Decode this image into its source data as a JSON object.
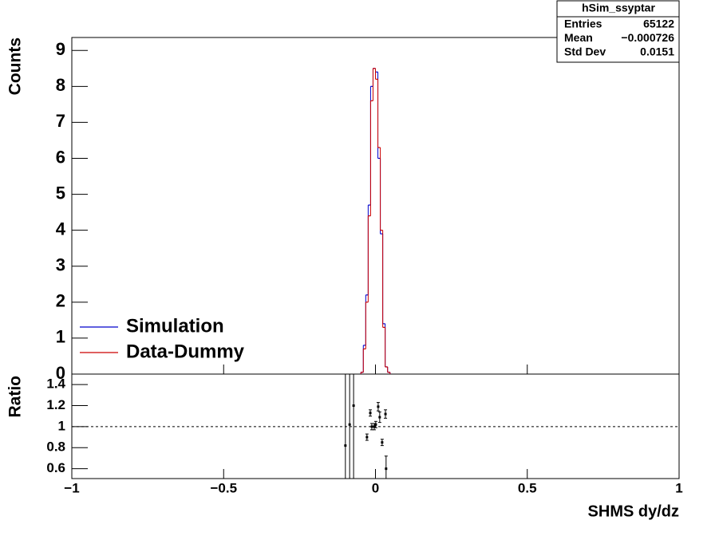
{
  "chart_data": [
    {
      "type": "histogram",
      "ylabel": "Counts",
      "bins": [
        -0.048,
        -0.04,
        -0.032,
        -0.024,
        -0.016,
        -0.008,
        0,
        0.008,
        0.016,
        0.024,
        0.032,
        0.04,
        0.048
      ],
      "series": [
        {
          "name": "Simulation",
          "color": "#0000cc",
          "values": [
            0.05,
            0.8,
            2.2,
            4.7,
            8.0,
            8.5,
            8.4,
            6.0,
            3.9,
            1.4,
            0.2,
            0.05
          ]
        },
        {
          "name": "Data-Dummy",
          "color": "#cc0000",
          "values": [
            0.05,
            0.7,
            2.0,
            4.4,
            7.6,
            8.5,
            8.2,
            6.3,
            4.0,
            1.3,
            0.2,
            0.05
          ]
        }
      ],
      "xlim": [
        -1,
        1
      ],
      "ylim": [
        0,
        9.36
      ],
      "yticks": [
        0,
        1,
        2,
        3,
        4,
        5,
        6,
        7,
        8,
        9
      ],
      "legend": "bottom-left"
    },
    {
      "type": "errorbar",
      "xlabel": "SHMS dy/dz",
      "ylabel": "Ratio",
      "x": [
        -0.099,
        -0.085,
        -0.072,
        -0.028,
        -0.017,
        -0.012,
        -0.004,
        0.001,
        0.009,
        0.014,
        0.022,
        0.033,
        0.035
      ],
      "values": [
        0.82,
        1.02,
        1.2,
        0.9,
        1.13,
        1.0,
        1.0,
        1.02,
        1.19,
        1.09,
        0.85,
        1.12,
        0.6
      ],
      "errors": [
        1.0,
        1.0,
        1.0,
        0.03,
        0.03,
        0.03,
        0.03,
        0.03,
        0.04,
        0.05,
        0.03,
        0.04,
        0.12
      ],
      "color": "#000000",
      "hline": 1,
      "xlim": [
        -1,
        1
      ],
      "xticks": [
        {
          "value": -1,
          "label": "−1"
        },
        {
          "value": -0.5,
          "label": "−0.5"
        },
        0,
        0.5,
        1
      ],
      "ylim": [
        0.506,
        1.5
      ],
      "yticks": [
        0.6,
        0.8,
        1,
        1.2,
        1.4
      ]
    }
  ],
  "stats_box": {
    "title": "hSim_ssyptar",
    "rows": [
      [
        "Entries",
        "65122"
      ],
      [
        "Mean",
        "−0.000726"
      ],
      [
        "Std Dev",
        "0.0151"
      ]
    ]
  }
}
